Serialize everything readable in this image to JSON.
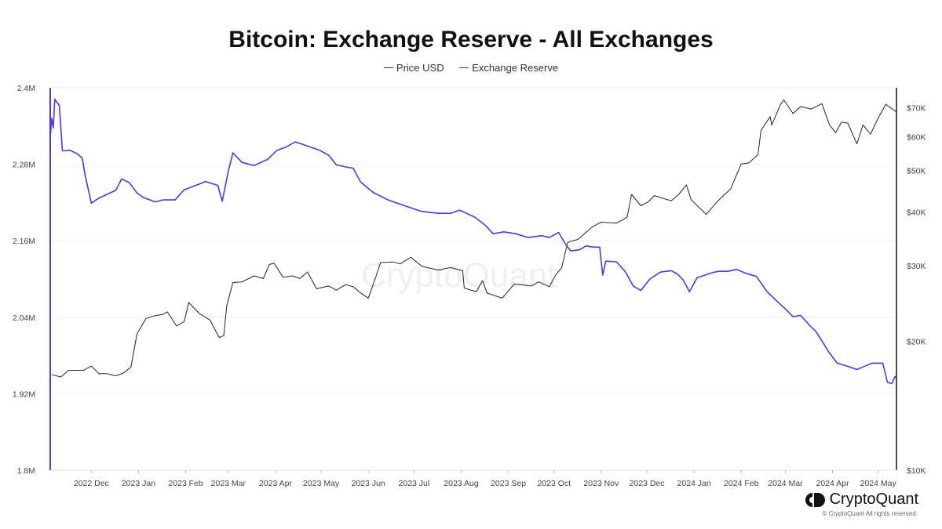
{
  "chart_data": {
    "type": "line",
    "title": "Bitcoin: Exchange Reserve - All Exchanges",
    "legend_position": "top-center",
    "grid": true,
    "x_tick_labels": [
      "2022 Dec",
      "2023 Jan",
      "2023 Feb",
      "2023 Mar",
      "2023 Apr",
      "2023 May",
      "2023 Jun",
      "2023 Jul",
      "2023 Aug",
      "2023 Sep",
      "2023 Oct",
      "2023 Nov",
      "2023 Dec",
      "2024 Jan",
      "2024 Feb",
      "2024 Mar",
      "2024 Apr",
      "2024 May"
    ],
    "x_range": [
      "2022-11-18",
      "2024-05-27"
    ],
    "y_left": {
      "label": "Exchange Reserve",
      "ticks": [
        "2.4M",
        "2.28M",
        "2.16M",
        "2.04M",
        "1.92M",
        "1.8M"
      ],
      "tick_values": [
        2400000,
        2280000,
        2160000,
        2040000,
        1920000,
        1800000
      ],
      "range": [
        1800000,
        2400000
      ]
    },
    "y_right": {
      "label": "Price USD",
      "scale": "log",
      "ticks": [
        "$70K",
        "$60K",
        "$50K",
        "$40K",
        "$30K",
        "$20K",
        "$10K"
      ],
      "tick_values": [
        70000,
        60000,
        50000,
        40000,
        30000,
        20000,
        10000
      ],
      "range": [
        10000,
        78000
      ]
    },
    "series": [
      {
        "name": "Price USD",
        "axis": "right",
        "color": "#222222",
        "points": [
          [
            "2022-11-19",
            16700
          ],
          [
            "2022-11-25",
            16500
          ],
          [
            "2022-11-30",
            17100
          ],
          [
            "2022-12-05",
            17100
          ],
          [
            "2022-12-10",
            17100
          ],
          [
            "2022-12-15",
            17500
          ],
          [
            "2022-12-20",
            16800
          ],
          [
            "2022-12-25",
            16800
          ],
          [
            "2022-12-31",
            16600
          ],
          [
            "2023-01-05",
            16850
          ],
          [
            "2023-01-10",
            17400
          ],
          [
            "2023-01-14",
            20800
          ],
          [
            "2023-01-20",
            22600
          ],
          [
            "2023-01-25",
            22900
          ],
          [
            "2023-01-31",
            23100
          ],
          [
            "2023-02-03",
            23400
          ],
          [
            "2023-02-09",
            21700
          ],
          [
            "2023-02-14",
            22200
          ],
          [
            "2023-02-17",
            24600
          ],
          [
            "2023-02-24",
            23200
          ],
          [
            "2023-03-03",
            22400
          ],
          [
            "2023-03-09",
            20400
          ],
          [
            "2023-03-12",
            20600
          ],
          [
            "2023-03-14",
            24200
          ],
          [
            "2023-03-18",
            27400
          ],
          [
            "2023-03-24",
            27500
          ],
          [
            "2023-04-01",
            28400
          ],
          [
            "2023-04-07",
            28000
          ],
          [
            "2023-04-11",
            30200
          ],
          [
            "2023-04-14",
            30400
          ],
          [
            "2023-04-20",
            28200
          ],
          [
            "2023-04-26",
            28400
          ],
          [
            "2023-05-01",
            28000
          ],
          [
            "2023-05-06",
            29000
          ],
          [
            "2023-05-12",
            26500
          ],
          [
            "2023-05-20",
            26900
          ],
          [
            "2023-05-25",
            26300
          ],
          [
            "2023-05-31",
            27100
          ],
          [
            "2023-06-05",
            26800
          ],
          [
            "2023-06-10",
            25900
          ],
          [
            "2023-06-15",
            25200
          ],
          [
            "2023-06-20",
            28300
          ],
          [
            "2023-06-23",
            30500
          ],
          [
            "2023-07-01",
            30600
          ],
          [
            "2023-07-06",
            30300
          ],
          [
            "2023-07-13",
            31400
          ],
          [
            "2023-07-20",
            29900
          ],
          [
            "2023-07-31",
            29300
          ],
          [
            "2023-08-08",
            29700
          ],
          [
            "2023-08-16",
            29200
          ],
          [
            "2023-08-17",
            26600
          ],
          [
            "2023-08-25",
            26100
          ],
          [
            "2023-08-29",
            27700
          ],
          [
            "2023-09-01",
            25900
          ],
          [
            "2023-09-11",
            25200
          ],
          [
            "2023-09-19",
            27200
          ],
          [
            "2023-09-30",
            26900
          ],
          [
            "2023-10-05",
            27500
          ],
          [
            "2023-10-12",
            26800
          ],
          [
            "2023-10-16",
            28500
          ],
          [
            "2023-10-20",
            29700
          ],
          [
            "2023-10-24",
            34000
          ],
          [
            "2023-10-31",
            34600
          ],
          [
            "2023-11-09",
            36900
          ],
          [
            "2023-11-15",
            37900
          ],
          [
            "2023-11-25",
            37700
          ],
          [
            "2023-12-02",
            38900
          ],
          [
            "2023-12-05",
            44000
          ],
          [
            "2023-12-11",
            41400
          ],
          [
            "2023-12-16",
            42300
          ],
          [
            "2023-12-20",
            43700
          ],
          [
            "2023-12-31",
            42500
          ],
          [
            "2024-01-05",
            44000
          ],
          [
            "2024-01-10",
            46300
          ],
          [
            "2024-01-13",
            42800
          ],
          [
            "2024-01-23",
            39500
          ],
          [
            "2024-01-31",
            42600
          ],
          [
            "2024-02-08",
            45300
          ],
          [
            "2024-02-15",
            51800
          ],
          [
            "2024-02-20",
            52100
          ],
          [
            "2024-02-26",
            54500
          ],
          [
            "2024-02-28",
            62000
          ],
          [
            "2024-03-05",
            66800
          ],
          [
            "2024-03-06",
            63800
          ],
          [
            "2024-03-12",
            71500
          ],
          [
            "2024-03-14",
            73100
          ],
          [
            "2024-03-20",
            67900
          ],
          [
            "2024-03-25",
            70500
          ],
          [
            "2024-04-01",
            69600
          ],
          [
            "2024-04-08",
            71600
          ],
          [
            "2024-04-13",
            63900
          ],
          [
            "2024-04-17",
            61300
          ],
          [
            "2024-04-21",
            64900
          ],
          [
            "2024-04-25",
            64500
          ],
          [
            "2024-05-01",
            57700
          ],
          [
            "2024-05-05",
            63900
          ],
          [
            "2024-05-10",
            60800
          ],
          [
            "2024-05-15",
            66300
          ],
          [
            "2024-05-20",
            71400
          ],
          [
            "2024-05-25",
            69300
          ],
          [
            "2024-05-27",
            68500
          ]
        ]
      },
      {
        "name": "Exchange Reserve",
        "axis": "left",
        "color": "#4f35e8",
        "points": [
          [
            "2022-11-18",
            2322000
          ],
          [
            "2022-11-19",
            2352000
          ],
          [
            "2022-11-20",
            2337000
          ],
          [
            "2022-11-21",
            2382000
          ],
          [
            "2022-11-24",
            2372000
          ],
          [
            "2022-11-26",
            2301000
          ],
          [
            "2022-12-01",
            2302000
          ],
          [
            "2022-12-06",
            2296000
          ],
          [
            "2022-12-09",
            2290000
          ],
          [
            "2022-12-11",
            2262000
          ],
          [
            "2022-12-15",
            2219000
          ],
          [
            "2022-12-20",
            2227000
          ],
          [
            "2022-12-31",
            2239000
          ],
          [
            "2023-01-04",
            2257000
          ],
          [
            "2023-01-09",
            2251000
          ],
          [
            "2023-01-14",
            2235000
          ],
          [
            "2023-01-18",
            2228000
          ],
          [
            "2023-01-26",
            2221000
          ],
          [
            "2023-01-31",
            2224000
          ],
          [
            "2023-02-08",
            2224000
          ],
          [
            "2023-02-14",
            2240000
          ],
          [
            "2023-02-22",
            2247000
          ],
          [
            "2023-02-28",
            2253000
          ],
          [
            "2023-03-08",
            2247000
          ],
          [
            "2023-03-11",
            2222000
          ],
          [
            "2023-03-15",
            2269000
          ],
          [
            "2023-03-18",
            2298000
          ],
          [
            "2023-03-24",
            2283000
          ],
          [
            "2023-04-01",
            2278000
          ],
          [
            "2023-04-10",
            2288000
          ],
          [
            "2023-04-16",
            2302000
          ],
          [
            "2023-04-22",
            2307000
          ],
          [
            "2023-04-28",
            2315000
          ],
          [
            "2023-05-02",
            2312000
          ],
          [
            "2023-05-08",
            2307000
          ],
          [
            "2023-05-14",
            2302000
          ],
          [
            "2023-05-20",
            2294000
          ],
          [
            "2023-05-25",
            2279000
          ],
          [
            "2023-05-31",
            2276000
          ],
          [
            "2023-06-05",
            2274000
          ],
          [
            "2023-06-10",
            2252000
          ],
          [
            "2023-06-18",
            2236000
          ],
          [
            "2023-06-28",
            2224000
          ],
          [
            "2023-07-10",
            2214000
          ],
          [
            "2023-07-20",
            2206000
          ],
          [
            "2023-07-31",
            2203000
          ],
          [
            "2023-08-08",
            2203000
          ],
          [
            "2023-08-14",
            2208000
          ],
          [
            "2023-08-24",
            2197000
          ],
          [
            "2023-08-31",
            2184000
          ],
          [
            "2023-09-05",
            2171000
          ],
          [
            "2023-09-12",
            2174000
          ],
          [
            "2023-09-20",
            2171000
          ],
          [
            "2023-09-28",
            2165000
          ],
          [
            "2023-10-07",
            2168000
          ],
          [
            "2023-10-12",
            2165000
          ],
          [
            "2023-10-18",
            2173000
          ],
          [
            "2023-10-23",
            2153000
          ],
          [
            "2023-10-26",
            2144000
          ],
          [
            "2023-11-01",
            2146000
          ],
          [
            "2023-11-05",
            2152000
          ],
          [
            "2023-11-10",
            2150000
          ],
          [
            "2023-11-14",
            2150000
          ],
          [
            "2023-11-16",
            2106000
          ],
          [
            "2023-11-18",
            2128000
          ],
          [
            "2023-11-25",
            2127000
          ],
          [
            "2023-12-01",
            2111000
          ],
          [
            "2023-12-06",
            2089000
          ],
          [
            "2023-12-11",
            2082000
          ],
          [
            "2023-12-17",
            2100000
          ],
          [
            "2023-12-24",
            2111000
          ],
          [
            "2023-12-31",
            2113000
          ],
          [
            "2024-01-04",
            2108000
          ],
          [
            "2024-01-08",
            2098000
          ],
          [
            "2024-01-12",
            2080000
          ],
          [
            "2024-01-17",
            2102000
          ],
          [
            "2024-01-27",
            2110000
          ],
          [
            "2024-01-31",
            2112000
          ],
          [
            "2024-02-06",
            2112000
          ],
          [
            "2024-02-12",
            2115000
          ],
          [
            "2024-02-18",
            2109000
          ],
          [
            "2024-02-25",
            2104000
          ],
          [
            "2024-03-03",
            2080000
          ],
          [
            "2024-03-10",
            2064000
          ],
          [
            "2024-03-15",
            2053000
          ],
          [
            "2024-03-20",
            2041000
          ],
          [
            "2024-03-25",
            2043000
          ],
          [
            "2024-03-31",
            2027000
          ],
          [
            "2024-04-04",
            2018000
          ],
          [
            "2024-04-08",
            2003000
          ],
          [
            "2024-04-12",
            1987000
          ],
          [
            "2024-04-18",
            1968000
          ],
          [
            "2024-04-25",
            1963000
          ],
          [
            "2024-05-01",
            1958000
          ],
          [
            "2024-05-05",
            1962000
          ],
          [
            "2024-05-11",
            1968000
          ],
          [
            "2024-05-18",
            1968000
          ],
          [
            "2024-05-21",
            1938000
          ],
          [
            "2024-05-24",
            1936000
          ],
          [
            "2024-05-26",
            1947000
          ],
          [
            "2024-05-27",
            1945000
          ]
        ]
      }
    ]
  },
  "watermark_text": "CryptoQuant",
  "brand": {
    "name": "CryptoQuant",
    "copyright": "© CryptoQuant All rights reserved."
  },
  "colors": {
    "reserve": "#4f35e8",
    "price": "#222222",
    "grid": "#efefef"
  }
}
